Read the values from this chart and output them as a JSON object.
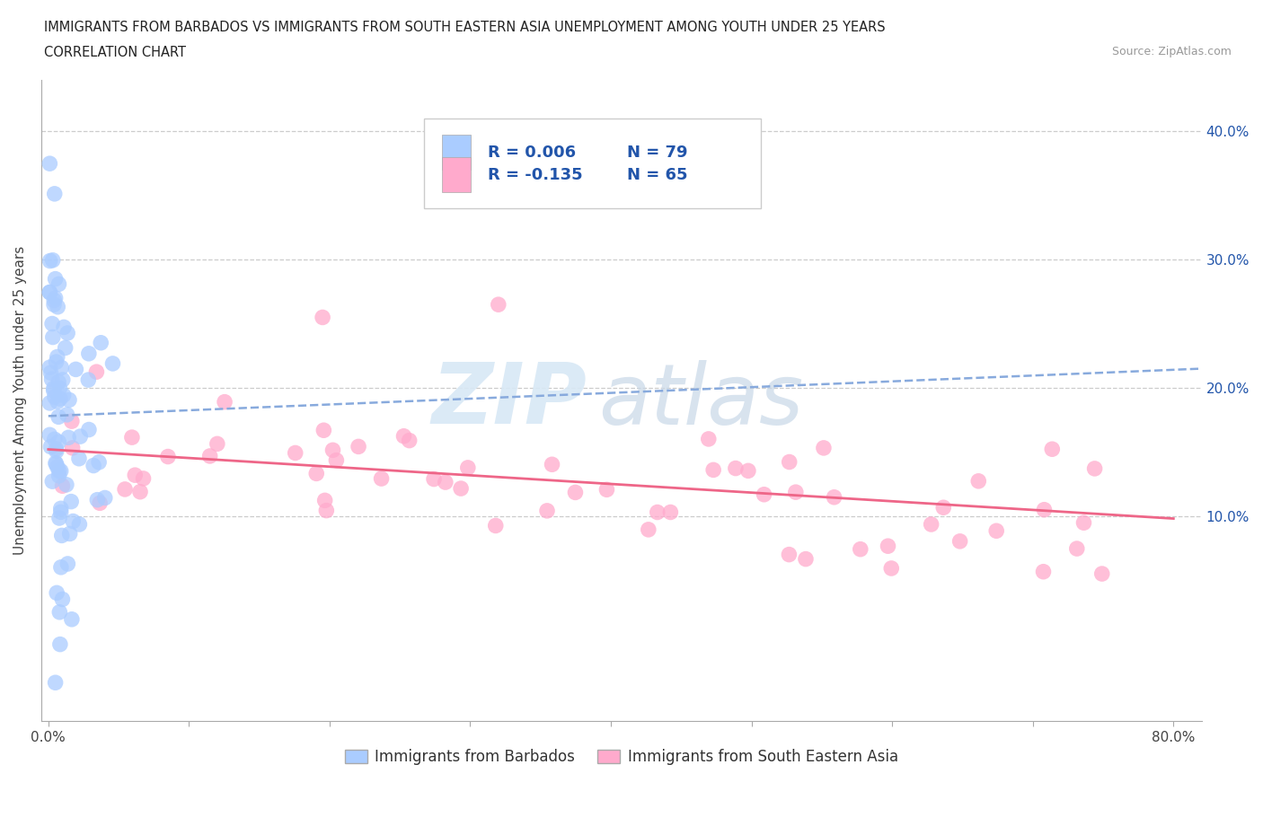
{
  "title_line1": "IMMIGRANTS FROM BARBADOS VS IMMIGRANTS FROM SOUTH EASTERN ASIA UNEMPLOYMENT AMONG YOUTH UNDER 25 YEARS",
  "title_line2": "CORRELATION CHART",
  "source": "Source: ZipAtlas.com",
  "ylabel": "Unemployment Among Youth under 25 years",
  "xlim": [
    -0.005,
    0.82
  ],
  "ylim": [
    -0.06,
    0.44
  ],
  "xtick_positions": [
    0.0,
    0.1,
    0.2,
    0.3,
    0.4,
    0.5,
    0.6,
    0.7,
    0.8
  ],
  "xticklabels": [
    "0.0%",
    "",
    "",
    "",
    "",
    "",
    "",
    "",
    "80.0%"
  ],
  "ytick_right_positions": [
    0.1,
    0.2,
    0.3,
    0.4
  ],
  "ytick_right_labels": [
    "10.0%",
    "20.0%",
    "30.0%",
    "40.0%"
  ],
  "grid_color": "#cccccc",
  "background_color": "#ffffff",
  "blue_color": "#aaccff",
  "pink_color": "#ffaacc",
  "blue_line_color": "#88aadd",
  "pink_line_color": "#ee6688",
  "watermark_zip": "ZIP",
  "watermark_atlas": "atlas",
  "legend_R1": "R = 0.006",
  "legend_N1": "N = 79",
  "legend_R2": "R = -0.135",
  "legend_N2": "N = 65",
  "label_blue": "Immigrants from Barbados",
  "label_pink": "Immigrants from South Eastern Asia",
  "blue_trend_start_y": 0.178,
  "blue_trend_end_y": 0.215,
  "pink_trend_start_y": 0.152,
  "pink_trend_end_y": 0.098,
  "title_fontsize": 10.5,
  "axis_label_color": "#444444",
  "right_tick_color": "#2255aa",
  "legend_text_color": "#2255aa"
}
